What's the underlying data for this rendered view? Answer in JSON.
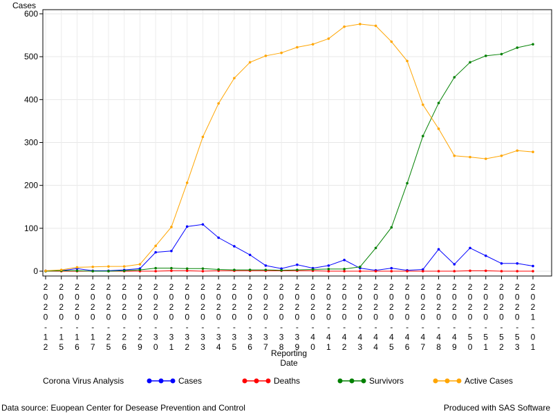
{
  "chart_data": {
    "type": "line",
    "ylabel": "Cases",
    "xlabel_line1": "Reporting",
    "xlabel_line2": "Date",
    "ylim": [
      0,
      600
    ],
    "yticks": [
      0,
      100,
      200,
      300,
      400,
      500,
      600
    ],
    "grid": true,
    "x": [
      "2020-12",
      "2020-15",
      "2020-16",
      "2020-17",
      "2020-25",
      "2020-26",
      "2020-29",
      "2020-30",
      "2020-31",
      "2020-32",
      "2020-33",
      "2020-34",
      "2020-35",
      "2020-36",
      "2020-37",
      "2020-38",
      "2020-39",
      "2020-40",
      "2020-41",
      "2020-42",
      "2020-43",
      "2020-44",
      "2020-45",
      "2020-46",
      "2020-47",
      "2020-48",
      "2020-49",
      "2020-50",
      "2020-51",
      "2020-52",
      "2020-53",
      "2021-01"
    ],
    "series": [
      {
        "name": "Cases",
        "color": "#0000ff",
        "values": [
          1,
          1,
          6,
          1,
          1,
          3,
          6,
          44,
          47,
          104,
          109,
          78,
          58,
          38,
          13,
          6,
          15,
          7,
          13,
          26,
          7,
          2,
          7,
          2,
          4,
          51,
          16,
          54,
          36,
          18,
          18,
          12
        ]
      },
      {
        "name": "Deaths",
        "color": "#ff0000",
        "values": [
          0,
          0,
          0,
          0,
          0,
          0,
          0,
          0,
          1,
          1,
          0,
          1,
          1,
          1,
          1,
          1,
          1,
          1,
          0,
          0,
          0,
          0,
          0,
          0,
          0,
          0,
          0,
          1,
          1,
          0,
          0,
          0
        ]
      },
      {
        "name": "Survivors",
        "color": "#008000",
        "values": [
          0,
          1,
          1,
          0,
          0,
          1,
          3,
          7,
          7,
          6,
          6,
          4,
          3,
          3,
          3,
          2,
          3,
          4,
          5,
          5,
          10,
          54,
          102,
          205,
          315,
          392,
          452,
          487,
          502,
          506,
          521,
          529
        ]
      },
      {
        "name": "Active Cases",
        "color": "#ffa500",
        "values": [
          1,
          3,
          9,
          10,
          11,
          11,
          16,
          59,
          103,
          206,
          313,
          391,
          450,
          487,
          502,
          509,
          522,
          529,
          542,
          570,
          576,
          572,
          535,
          490,
          388,
          332,
          269,
          266,
          262,
          269,
          281,
          278
        ]
      }
    ],
    "legend_title": "Corona Virus Analysis",
    "legend_position": "bottom"
  },
  "footer": {
    "left": "Data source: Euopean Center for Desease Prevention and Control",
    "right": "Produced with SAS Software"
  }
}
